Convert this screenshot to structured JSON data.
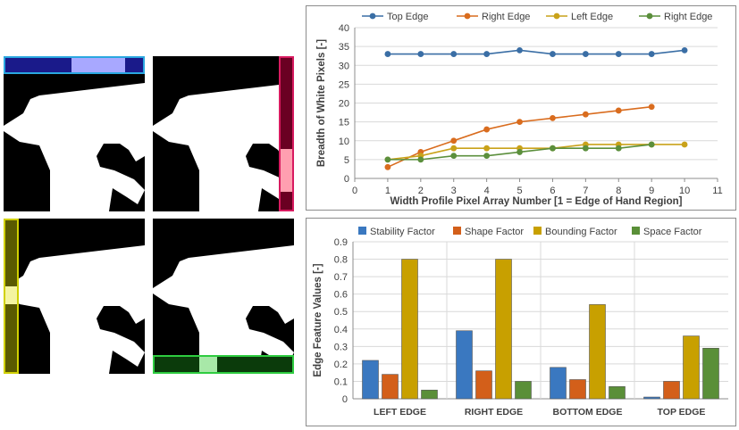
{
  "images": [
    {
      "name": "hand-silhouette-top-edge",
      "highlight": "top-edge",
      "color": "#3b4fd6"
    },
    {
      "name": "hand-silhouette-right-edge",
      "highlight": "right-edge",
      "color": "#c2185b"
    },
    {
      "name": "hand-silhouette-left-edge",
      "highlight": "left-edge",
      "color": "#c8c800"
    },
    {
      "name": "hand-silhouette-bottom-edge",
      "highlight": "bottom-edge",
      "color": "#22a022"
    }
  ],
  "chart_data": [
    {
      "type": "line",
      "title": "",
      "xlabel": "Width  Profile Pixel Array Number [1 = Edge of Hand Region]",
      "ylabel": "Breadth of White Pixels [-]",
      "xlim": [
        0,
        11
      ],
      "ylim": [
        0,
        40
      ],
      "xticks": [
        0,
        1,
        2,
        3,
        4,
        5,
        6,
        7,
        8,
        9,
        10,
        11
      ],
      "yticks": [
        0,
        5,
        10,
        15,
        20,
        25,
        30,
        35,
        40
      ],
      "grid": "horizontal",
      "legend": "top",
      "series": [
        {
          "name": "Top Edge",
          "color": "#3a6ea5",
          "x": [
            1,
            2,
            3,
            4,
            5,
            6,
            7,
            8,
            9,
            10
          ],
          "y": [
            33,
            33,
            33,
            33,
            34,
            33,
            33,
            33,
            33,
            34
          ]
        },
        {
          "name": "Right Edge",
          "color": "#d96c1e",
          "x": [
            1,
            2,
            3,
            4,
            5,
            6,
            7,
            8,
            9
          ],
          "y": [
            3,
            7,
            10,
            13,
            15,
            16,
            17,
            18,
            19
          ]
        },
        {
          "name": "Left Edge",
          "color": "#c9a21a",
          "x": [
            1,
            2,
            3,
            4,
            5,
            6,
            7,
            8,
            9,
            10
          ],
          "y": [
            5,
            6,
            8,
            8,
            8,
            8,
            9,
            9,
            9,
            9
          ]
        },
        {
          "name": "Right Edge",
          "color": "#5b8f3c",
          "x": [
            1,
            2,
            3,
            4,
            5,
            6,
            7,
            8,
            9
          ],
          "y": [
            5,
            5,
            6,
            6,
            7,
            8,
            8,
            8,
            9
          ]
        }
      ]
    },
    {
      "type": "bar",
      "title": "",
      "xlabel": "",
      "ylabel": "Edge Feature Values [-]",
      "ylim": [
        0,
        0.9
      ],
      "yticks": [
        "0",
        "0.1",
        "0.2",
        "0.3",
        "0.4",
        "0.5",
        "0.6",
        "0.7",
        "0.8",
        "0.9"
      ],
      "grid": "horizontal",
      "legend": "top",
      "categories": [
        "LEFT EDGE",
        "RIGHT EDGE",
        "BOTTOM EDGE",
        "TOP EDGE"
      ],
      "series": [
        {
          "name": "Stability Factor",
          "color": "#3a78c0",
          "values": [
            0.22,
            0.39,
            0.18,
            0.01
          ]
        },
        {
          "name": "Shape Factor",
          "color": "#d35f1a",
          "values": [
            0.14,
            0.16,
            0.11,
            0.1
          ]
        },
        {
          "name": "Bounding Factor",
          "color": "#c8a000",
          "values": [
            0.8,
            0.8,
            0.54,
            0.36
          ]
        },
        {
          "name": "Space Factor",
          "color": "#5a8f38",
          "values": [
            0.05,
            0.1,
            0.07,
            0.29
          ]
        }
      ]
    }
  ]
}
